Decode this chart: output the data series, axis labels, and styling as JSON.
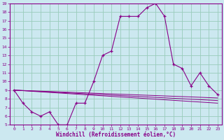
{
  "xlabel": "Windchill (Refroidissement éolien,°C)",
  "background_color": "#cce8f0",
  "line_color": "#880088",
  "grid_color": "#99ccbb",
  "xlim": [
    -0.5,
    23.5
  ],
  "ylim": [
    5,
    19
  ],
  "yticks": [
    5,
    6,
    7,
    8,
    9,
    10,
    11,
    12,
    13,
    14,
    15,
    16,
    17,
    18,
    19
  ],
  "xticks": [
    0,
    1,
    2,
    3,
    4,
    5,
    6,
    7,
    8,
    9,
    10,
    11,
    12,
    13,
    14,
    15,
    16,
    17,
    18,
    19,
    20,
    21,
    22,
    23
  ],
  "main_x": [
    0,
    1,
    2,
    3,
    4,
    5,
    6,
    7,
    8,
    9,
    10,
    11,
    12,
    13,
    14,
    15,
    16,
    17,
    18,
    19,
    20,
    21,
    22,
    23
  ],
  "main_y": [
    9.0,
    7.5,
    6.5,
    6.0,
    6.5,
    5.0,
    5.0,
    7.5,
    7.5,
    10.0,
    13.0,
    13.5,
    17.5,
    17.5,
    17.5,
    18.5,
    19.0,
    17.5,
    12.0,
    11.5,
    9.5,
    11.0,
    9.5,
    8.5
  ],
  "trend_lines": [
    {
      "x": [
        0,
        23
      ],
      "y": [
        9.0,
        7.5
      ]
    },
    {
      "x": [
        0,
        23
      ],
      "y": [
        9.0,
        7.8
      ]
    },
    {
      "x": [
        0,
        23
      ],
      "y": [
        9.0,
        8.1
      ]
    }
  ]
}
